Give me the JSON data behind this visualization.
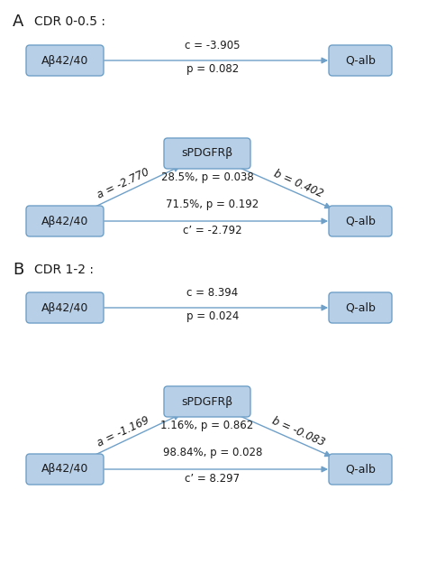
{
  "box_facecolor": "#b8cfe8",
  "box_edgecolor": "#6fa0c8",
  "arrow_color": "#6fa0c8",
  "text_color": "#1a1a1a",
  "background_color": "#ffffff",
  "panel_A_label": "A",
  "panel_B_label": "B",
  "cdr_A_label": "CDR 0-0.5 :",
  "cdr_B_label": "CDR 1-2 :",
  "box_labels": {
    "ab4240": "Aβ42/40",
    "qalb": "Q-alb",
    "mediator": "sPDGFRβ"
  },
  "panel_A": {
    "direct": {
      "c_label": "c = -3.905",
      "p_label": "p = 0.082"
    },
    "mediation": {
      "a_label": "a = -2.770",
      "b_label": "b = 0.402",
      "mediator_label": "28.5%, p = 0.038",
      "indirect_label": "71.5%, p = 0.192",
      "cprime_label": "c’ = -2.792"
    }
  },
  "panel_B": {
    "direct": {
      "c_label": "c = 8.394",
      "p_label": "p = 0.024"
    },
    "mediation": {
      "a_label": "a = -1.169",
      "b_label": "b = -0.083",
      "mediator_label": "1.16%, p = 0.862",
      "indirect_label": "98.84%, p = 0.028",
      "cprime_label": "c’ = 8.297"
    }
  }
}
